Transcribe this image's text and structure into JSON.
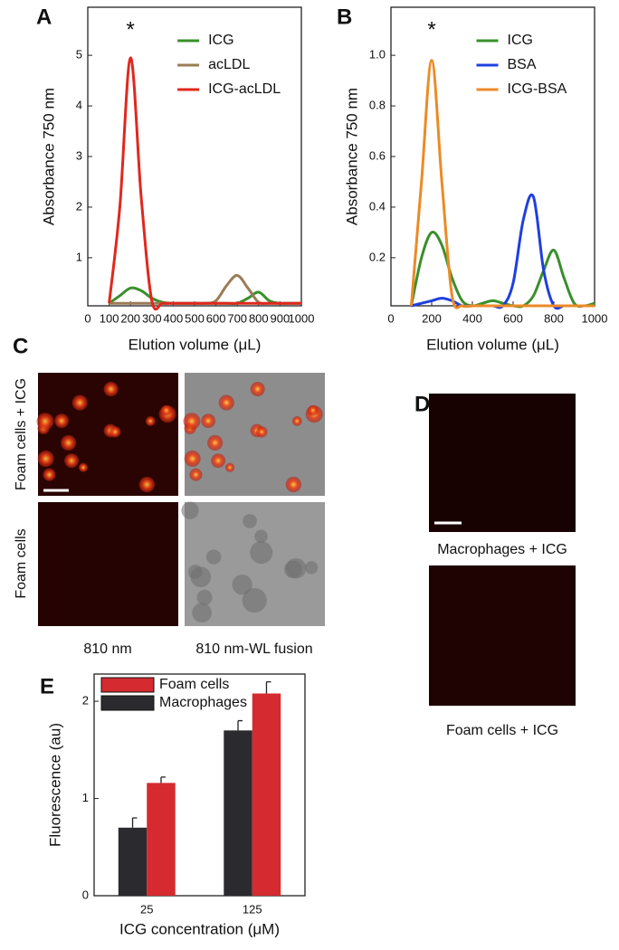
{
  "chart_data": [
    {
      "type": "line",
      "panel": "A",
      "annotation": "*",
      "ylabel": "Absorbance 750 nm",
      "xlabel": "Elution volume (μL)",
      "x": [
        100,
        150,
        200,
        250,
        300,
        350,
        400,
        450,
        500,
        550,
        600,
        650,
        700,
        750,
        800,
        850,
        900,
        950,
        1000
      ],
      "series": [
        {
          "name": "ICG",
          "color": "#3a8f2c",
          "values": [
            0.1,
            0.25,
            0.4,
            0.35,
            0.2,
            0.12,
            0.1,
            0.1,
            0.1,
            0.1,
            0.1,
            0.1,
            0.1,
            0.2,
            0.32,
            0.15,
            0.1,
            0.1,
            0.1
          ]
        },
        {
          "name": "acLDL",
          "color": "#9b7c55",
          "values": [
            0.1,
            0.1,
            0.1,
            0.1,
            0.1,
            0.1,
            0.1,
            0.1,
            0.1,
            0.1,
            0.15,
            0.45,
            0.65,
            0.4,
            0.12,
            0.1,
            0.1,
            0.1,
            0.1
          ]
        },
        {
          "name": "ICG-acLDL",
          "color": "#e0281e",
          "values": [
            0.1,
            2.0,
            4.95,
            2.2,
            0.15,
            0.1,
            0.1,
            0.1,
            0.1,
            0.1,
            0.1,
            0.1,
            0.1,
            0.1,
            0.1,
            0.1,
            0.1,
            0.1,
            0.1
          ]
        }
      ],
      "xlim": [
        0,
        1000
      ],
      "xticks": [
        0,
        100,
        200,
        300,
        400,
        500,
        600,
        700,
        800,
        900,
        1000
      ],
      "ylim": [
        0.05,
        5.95
      ],
      "yticks": [
        1,
        2,
        3,
        4,
        5
      ],
      "legend": "upper right"
    },
    {
      "type": "line",
      "panel": "B",
      "annotation": "*",
      "ylabel": "Absorbance 750 nm",
      "xlabel": "Elution volume (μL)",
      "x": [
        100,
        150,
        200,
        250,
        300,
        350,
        400,
        450,
        500,
        550,
        600,
        650,
        700,
        750,
        800,
        850,
        900,
        950,
        1000
      ],
      "series": [
        {
          "name": "ICG",
          "color": "#3a8f2c",
          "values": [
            0.01,
            0.2,
            0.3,
            0.25,
            0.12,
            0.03,
            0.01,
            0.02,
            0.03,
            0.02,
            0.01,
            0.01,
            0.05,
            0.15,
            0.23,
            0.12,
            0.02,
            0.01,
            0.02
          ]
        },
        {
          "name": "BSA",
          "color": "#1f3fe0",
          "values": [
            0.01,
            0.02,
            0.03,
            0.04,
            0.03,
            0.01,
            0.01,
            0.01,
            0.01,
            0.01,
            0.1,
            0.35,
            0.44,
            0.15,
            0.01,
            0.01,
            0.01,
            0.01,
            0.01
          ]
        },
        {
          "name": "ICG-BSA",
          "color": "#ec8a26",
          "values": [
            0.01,
            0.5,
            0.98,
            0.5,
            0.05,
            0.01,
            0.01,
            0.01,
            0.01,
            0.01,
            0.01,
            0.01,
            0.01,
            0.01,
            0.01,
            0.01,
            0.01,
            0.01,
            0.01
          ]
        }
      ],
      "xlim": [
        0,
        1000
      ],
      "xticks": [
        0,
        200,
        400,
        600,
        800,
        1000
      ],
      "ylim": [
        0.01,
        1.19
      ],
      "yticks": [
        0.2,
        0.4,
        0.6,
        0.8,
        {
          "value": 1,
          "label": "1.0"
        }
      ],
      "legend": "upper right"
    },
    {
      "type": "bar",
      "panel": "E",
      "ylabel": "Fluorescence (au)",
      "xlabel": "ICG concentration (μM)",
      "categories": [
        "25",
        "125"
      ],
      "series": [
        {
          "name": "Macrophages",
          "color": "#2b2a2e",
          "values": [
            0.7,
            1.7
          ],
          "errors": [
            0.1,
            0.1
          ]
        },
        {
          "name": "Foam cells",
          "color": "#d42a30",
          "values": [
            1.16,
            2.08
          ],
          "errors": [
            0.06,
            0.12
          ]
        }
      ],
      "ylim": [
        0,
        2.28
      ],
      "yticks": [
        0,
        1,
        2
      ],
      "legend": "upper left"
    }
  ],
  "panel_c": {
    "letter": "C",
    "rows": [
      "Foam cells + ICG",
      "Foam cells"
    ],
    "columns": [
      "810 nm",
      "810 nm-WL fusion"
    ]
  },
  "panel_d": {
    "letter": "D",
    "captions": [
      "Macrophages + ICG",
      "Foam cells + ICG"
    ]
  }
}
